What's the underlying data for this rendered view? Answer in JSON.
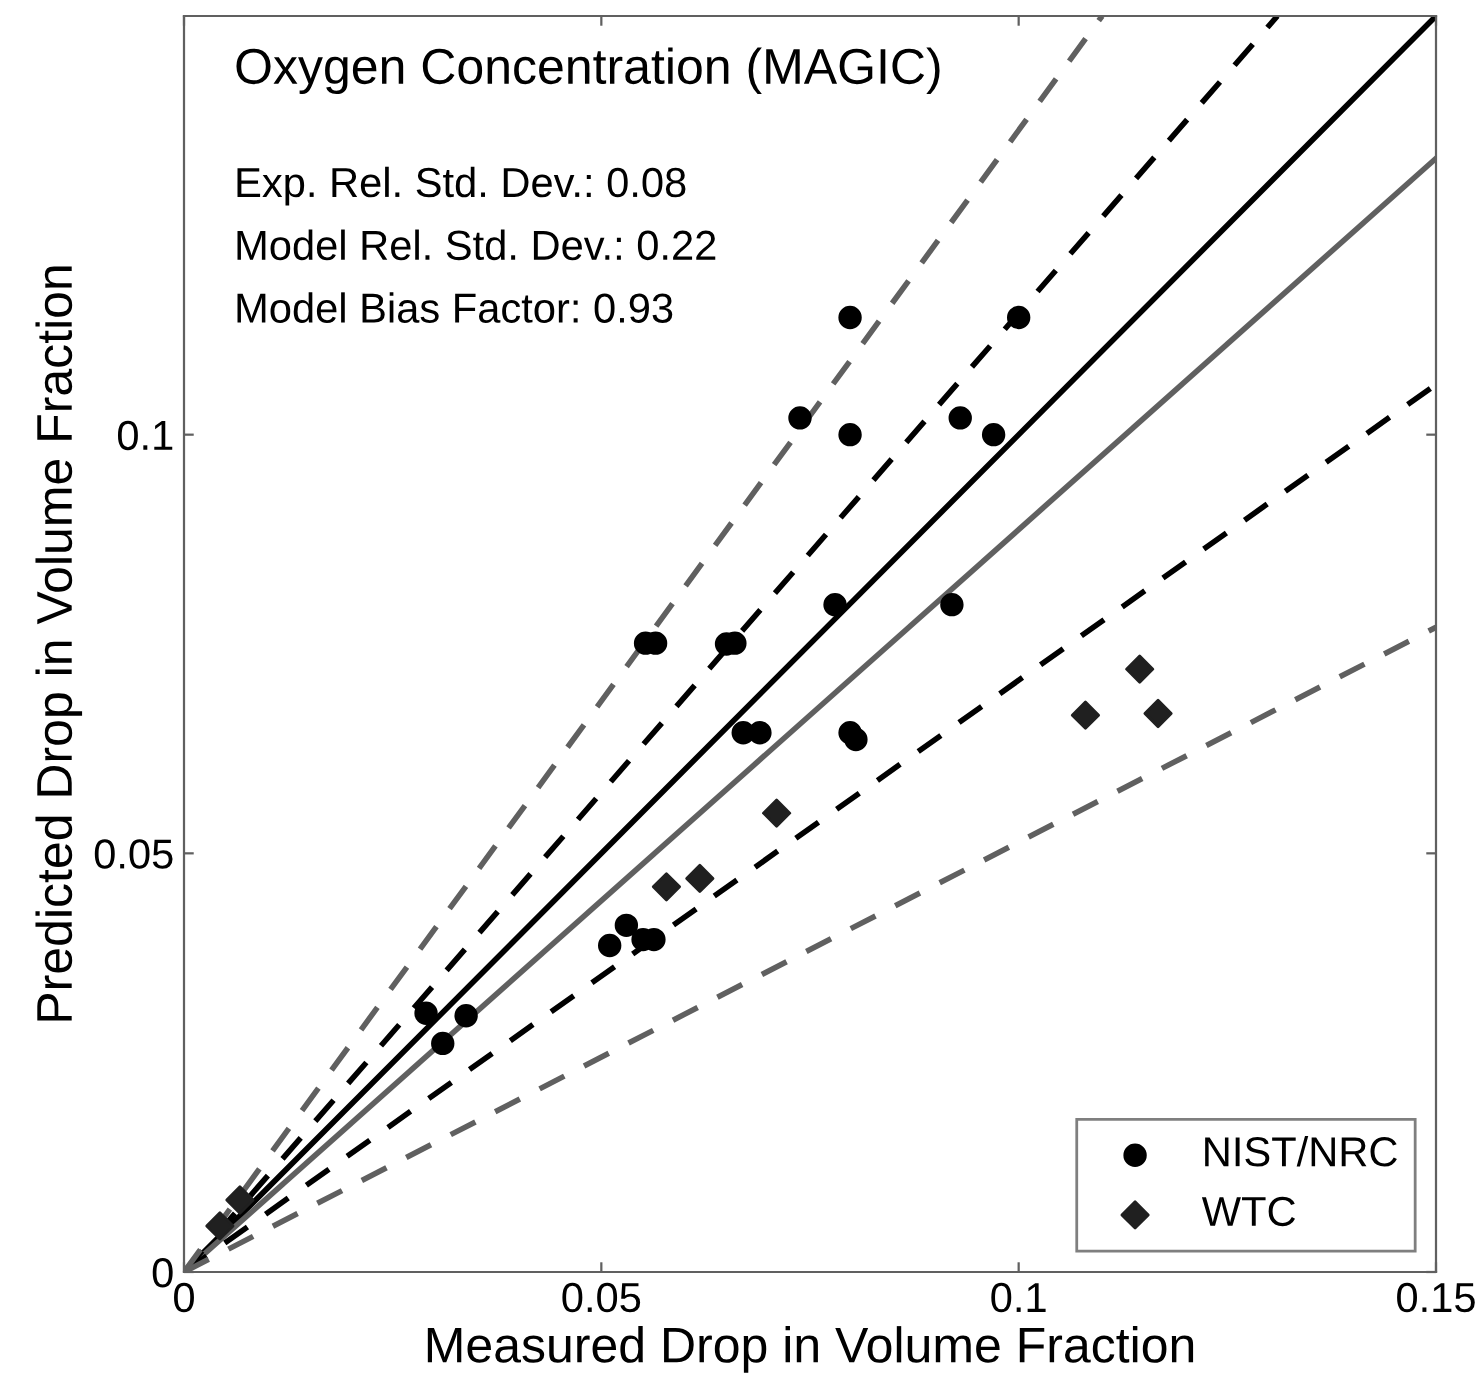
{
  "chart_data": {
    "type": "scatter",
    "xlabel": "Measured Drop in Volume Fraction",
    "ylabel": "Predicted Drop in Volume Fraction",
    "annotations": [
      "Oxygen Concentration (MAGIC)",
      "Exp. Rel. Std. Dev.: 0.08",
      "Model Rel. Std. Dev.: 0.22",
      "Model Bias Factor: 0.93"
    ],
    "xlim": [
      0,
      0.15
    ],
    "ylim": [
      0,
      0.15
    ],
    "xticks": [
      0,
      0.05,
      0.1,
      0.15
    ],
    "yticks": [
      0,
      0.05,
      0.1
    ],
    "grid": false,
    "legend": "bottom right",
    "series": [
      {
        "type": "line",
        "color": "#000000",
        "line_style": "solid",
        "x": [
          0,
          0.15
        ],
        "values": [
          0,
          0.15
        ]
      },
      {
        "type": "line",
        "color": "#606060",
        "line_style": "solid",
        "x": [
          0,
          0.15
        ],
        "values": [
          0,
          0.133
        ]
      },
      {
        "type": "line",
        "color": "#000000",
        "line_style": "dashed",
        "x": [
          0,
          0.131
        ],
        "values": [
          0,
          0.15
        ]
      },
      {
        "type": "line",
        "color": "#000000",
        "line_style": "dashed",
        "x": [
          0,
          0.15
        ],
        "values": [
          0,
          0.106
        ]
      },
      {
        "type": "line",
        "color": "#606060",
        "line_style": "dashed",
        "x": [
          0,
          0.11
        ],
        "values": [
          0,
          0.15
        ]
      },
      {
        "type": "line",
        "color": "#606060",
        "line_style": "dashed",
        "x": [
          0,
          0.15
        ],
        "values": [
          0,
          0.077
        ]
      },
      {
        "name": "NIST/NRC",
        "color": "#000000",
        "marker": "circle",
        "x": [
          0.1,
          0.0798,
          0.0738,
          0.0798,
          0.093,
          0.097,
          0.078,
          0.092,
          0.0553,
          0.0565,
          0.065,
          0.066,
          0.067,
          0.069,
          0.0798,
          0.0805,
          0.051,
          0.053,
          0.055,
          0.0563,
          0.029,
          0.031,
          0.0338
        ],
        "values": [
          0.114,
          0.114,
          0.102,
          0.1,
          0.102,
          0.1,
          0.0797,
          0.0797,
          0.0751,
          0.0751,
          0.075,
          0.0751,
          0.0644,
          0.0644,
          0.0644,
          0.0636,
          0.039,
          0.0414,
          0.0397,
          0.0397,
          0.0309,
          0.0273,
          0.0306
        ]
      },
      {
        "name": "WTC",
        "color": "#202020",
        "marker": "diamond",
        "x": [
          0.0043,
          0.0067,
          0.0578,
          0.0618,
          0.071,
          0.108,
          0.1145,
          0.1167
        ],
        "values": [
          0.0055,
          0.0086,
          0.046,
          0.047,
          0.0548,
          0.0665,
          0.072,
          0.0667
        ]
      }
    ]
  }
}
